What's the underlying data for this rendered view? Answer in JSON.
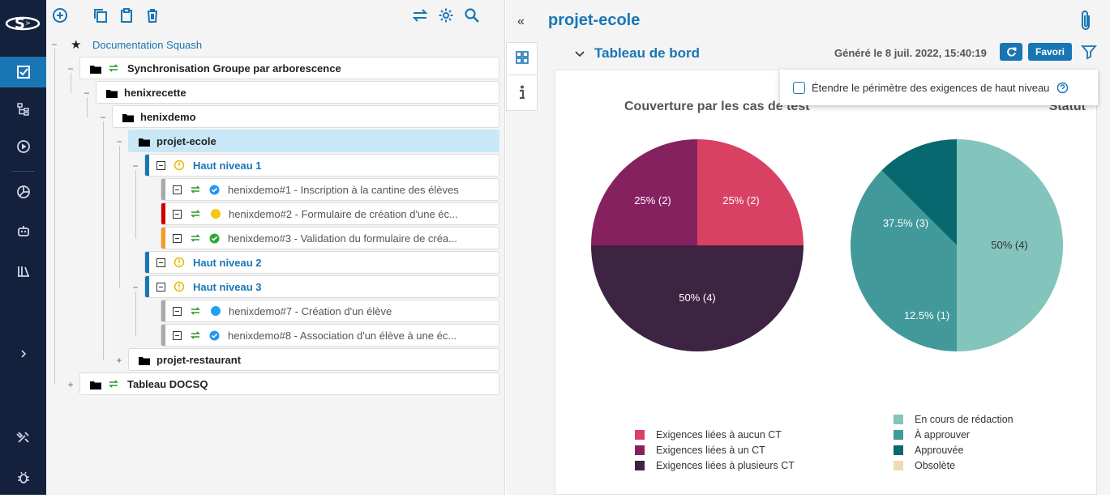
{
  "tree": {
    "root": "Documentation Squash",
    "nodes": [
      {
        "label": "Synchronisation Groupe par arborescence"
      },
      {
        "label": "henixrecette"
      },
      {
        "label": "henixdemo"
      },
      {
        "label": "projet-ecole"
      },
      {
        "label": "Haut niveau 1"
      },
      {
        "label": "henixdemo#1 - Inscription à la cantine des élèves"
      },
      {
        "label": "henixdemo#2 - Formulaire de création d'une éc..."
      },
      {
        "label": "henixdemo#3 - Validation du formulaire de créa..."
      },
      {
        "label": "Haut niveau 2"
      },
      {
        "label": "Haut niveau 3"
      },
      {
        "label": "henixdemo#7 - Création d'un élève"
      },
      {
        "label": "henixdemo#8 - Association d'un élève à une éc..."
      },
      {
        "label": "projet-restaurant"
      },
      {
        "label": "Tableau DOCSQ"
      }
    ],
    "colors": {
      "status_bar_gray": "#a9a9a9",
      "status_bar_red": "#cc0000",
      "status_bar_orange": "#f59a23",
      "link_blue": "#1976b5"
    }
  },
  "main": {
    "title": "projet-ecole",
    "section_title": "Tableau de bord",
    "generated": "Généré le 8 juil. 2022, 15:40:19",
    "favori": "Favori",
    "popup_label": "Étendre le périmètre des exigences de haut niveau"
  },
  "chart_data": [
    {
      "type": "pie",
      "title": "Couverture par les cas de test",
      "categories": [
        "Exigences liées à aucun CT",
        "Exigences liées à un CT",
        "Exigences liées à plusieurs CT"
      ],
      "values": [
        2,
        2,
        4
      ],
      "labels": [
        "25% (2)",
        "25% (2)",
        "50% (4)"
      ],
      "colors": [
        "#d94163",
        "#862160",
        "#3c2442"
      ]
    },
    {
      "type": "pie",
      "title": "Statut",
      "categories": [
        "En cours de rédaction",
        "À approuver",
        "Approuvée",
        "Obsolète"
      ],
      "values": [
        4,
        3,
        1,
        0
      ],
      "labels": [
        "50% (4)",
        "37.5% (3)",
        "12.5% (1)",
        ""
      ],
      "colors": [
        "#83c4bc",
        "#41999a",
        "#076870",
        "#efdcb2"
      ]
    }
  ]
}
